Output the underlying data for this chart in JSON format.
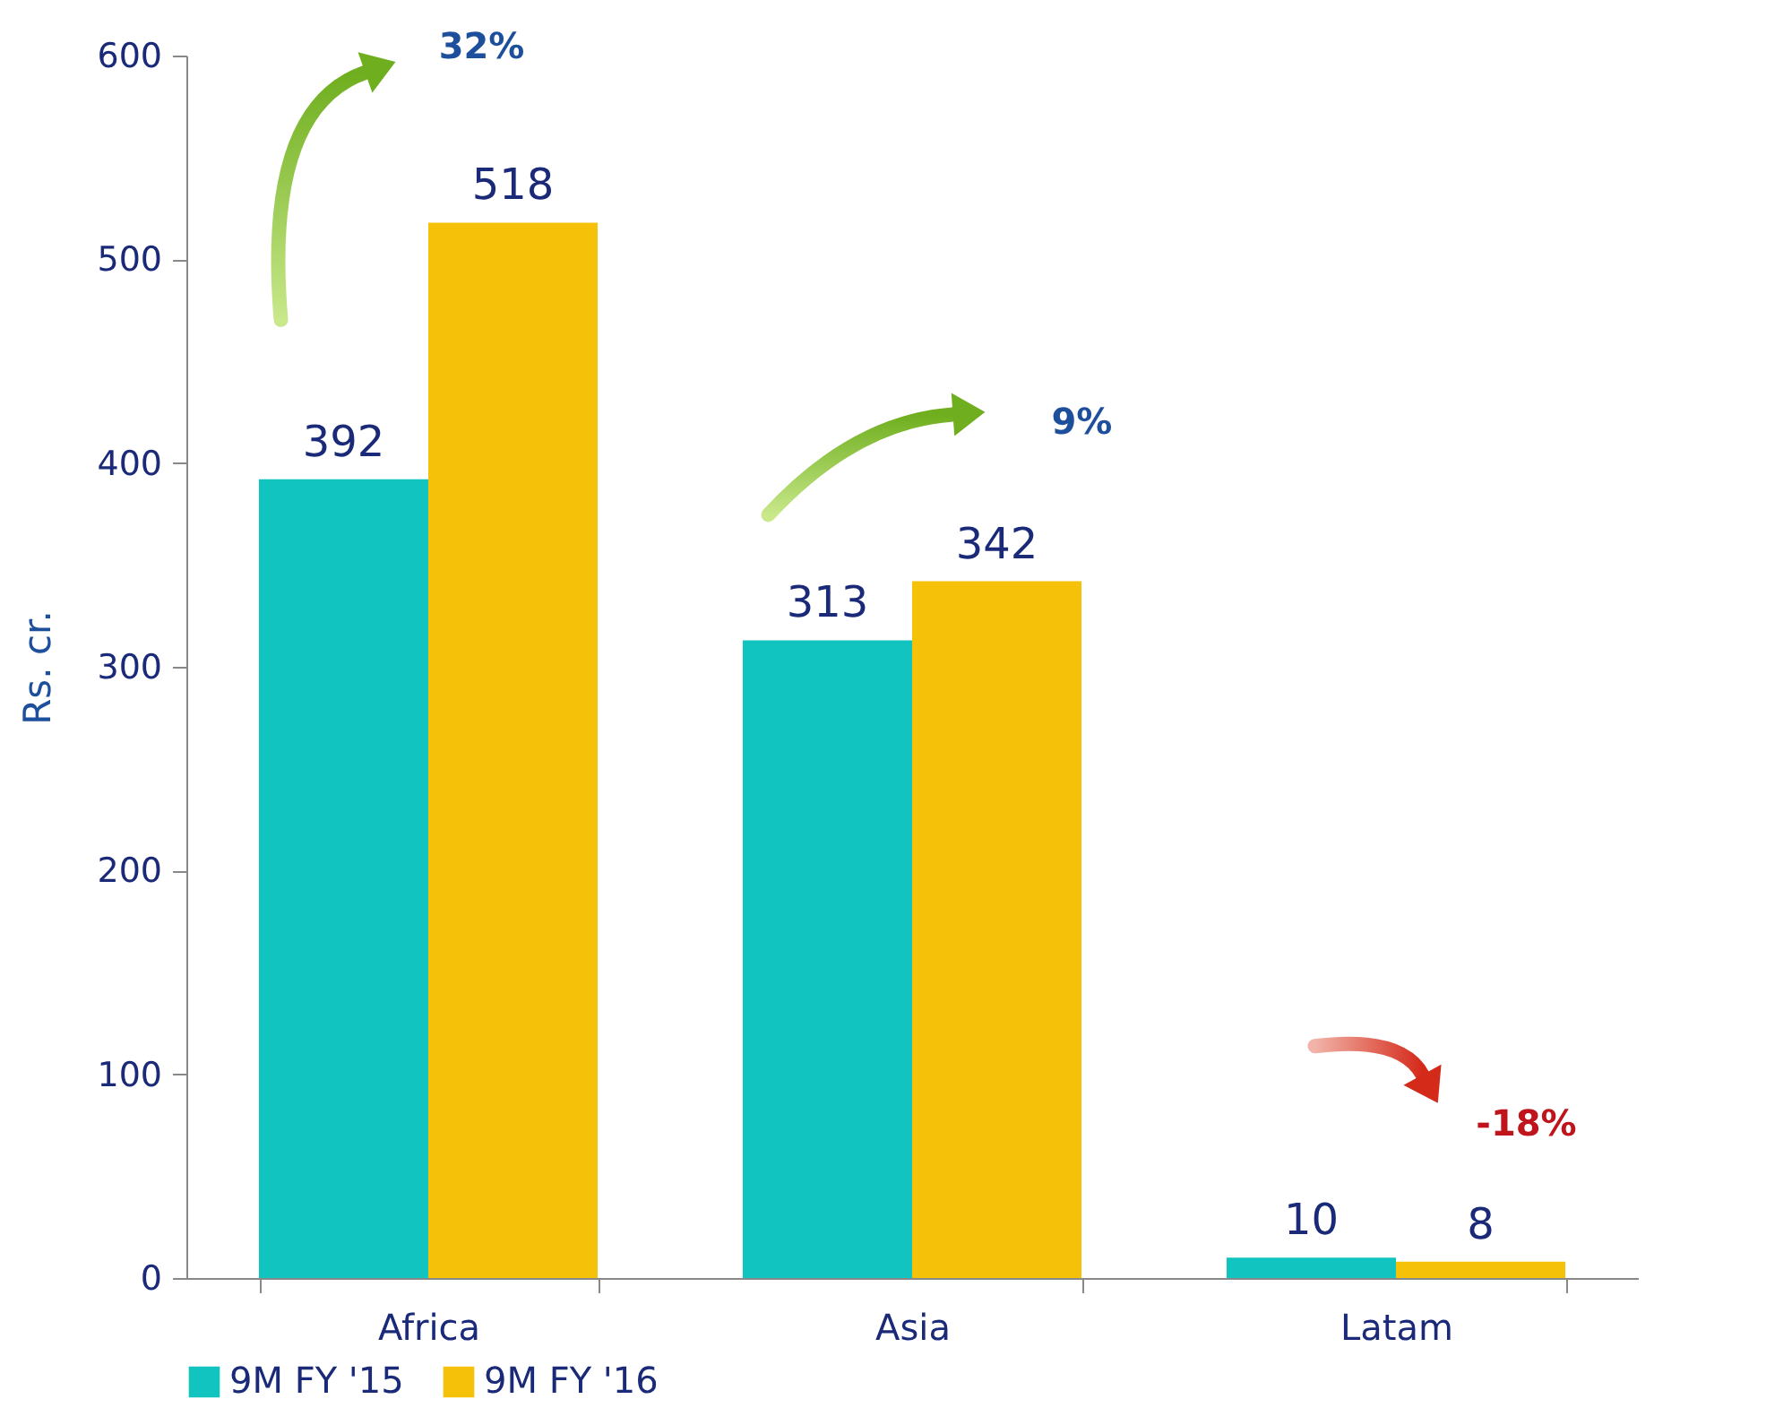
{
  "chart_data": {
    "type": "bar",
    "ylabel": "Rs. cr.",
    "categories": [
      "Africa",
      "Asia",
      "Latam"
    ],
    "series": [
      {
        "name": "9M FY '15",
        "color": "#12c4c0",
        "values": [
          392,
          313,
          10
        ]
      },
      {
        "name": "9M FY '16",
        "color": "#f5c109",
        "values": [
          518,
          342,
          8
        ]
      }
    ],
    "ylim": [
      0,
      600
    ],
    "yticks": [
      0,
      100,
      200,
      300,
      400,
      500,
      600
    ],
    "data_labels": true,
    "legend": "bottom",
    "grid": false,
    "annotations": [
      "32%",
      "9%",
      "-18%"
    ]
  }
}
